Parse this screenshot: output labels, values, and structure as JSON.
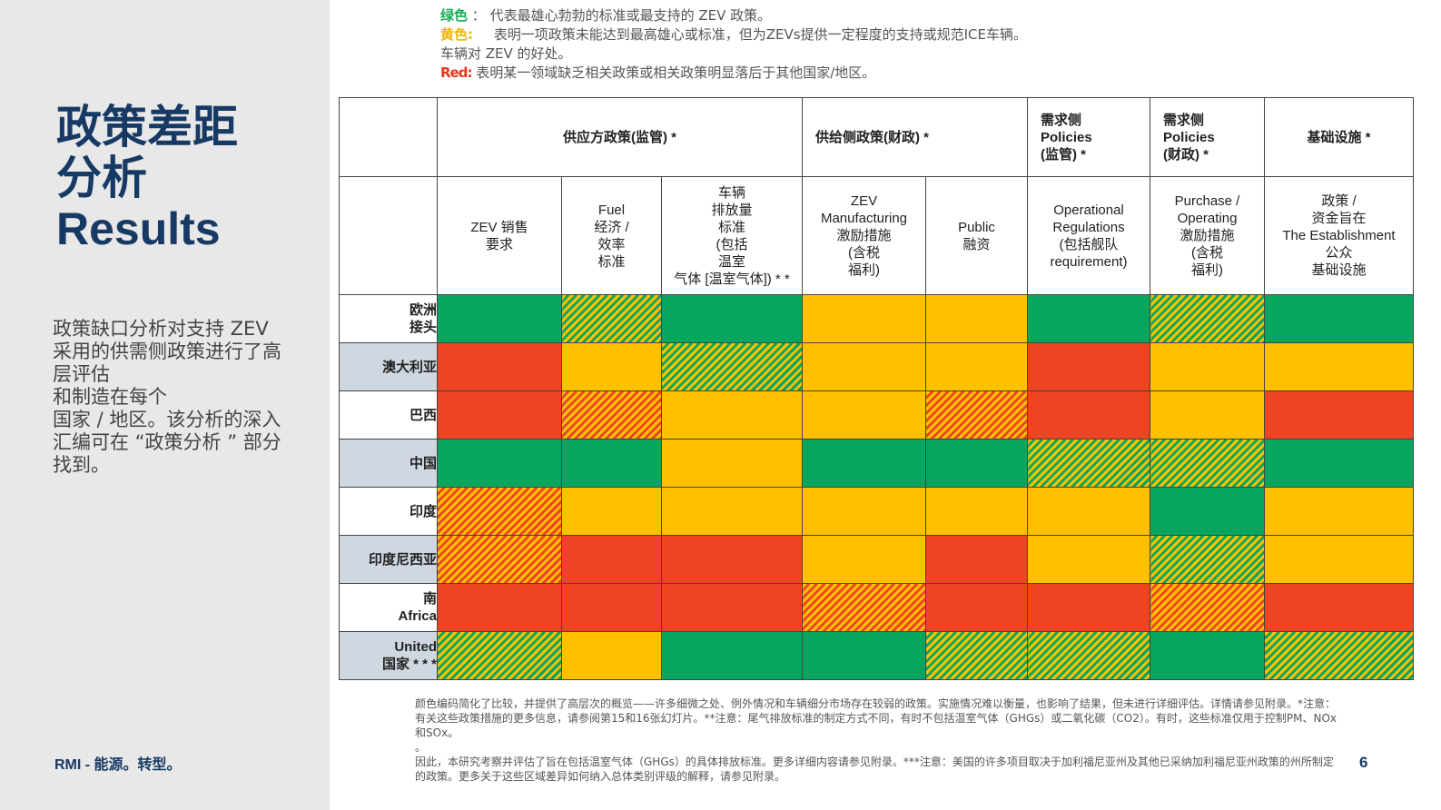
{
  "title": {
    "line1": "政策差距",
    "line2": "分析",
    "line3": "Results"
  },
  "description": {
    "lines": [
      "政策缺口分析对支持 ZEV",
      "采用的供需侧政策进行了高",
      "层评估",
      "和制造在每个",
      "国家 / 地区。该分析的深入",
      "汇编可在 “政策分析 ” 部分",
      "找到。"
    ]
  },
  "brand": "RMI - 能源。转型。",
  "legend": {
    "green_label": "绿色",
    "green_text": "： 代表最雄心勃勃的标准或最支持的 ZEV 政策。",
    "yellow_label": "黄色:",
    "yellow_text": "表明一项政策未能达到最高雄心或标准，但为ZEVs提供一定程度的支持或规范ICE车辆。",
    "yellow_text2": "车辆对 ZEV 的好处。",
    "red_label": "Red:",
    "red_text": "表明某一领域缺乏相关政策或相关政策明显落后于其他国家/地区。"
  },
  "colors": {
    "green": "#08a55f",
    "yellow": "#ffc000",
    "red": "#ef4423",
    "title_blue": "#173a64",
    "row_label_alt": "#cfd8e0"
  },
  "table": {
    "groups": [
      {
        "label": "供应方政策(监管) *"
      },
      {
        "label": "供给侧政策(财政) *"
      },
      {
        "label": "需求侧\n  Policies\n(监管) *"
      },
      {
        "label": "需求侧\n  Policies\n(财政) *"
      },
      {
        "label": "基础设施 *"
      }
    ],
    "columns": [
      {
        "label": "ZEV 销售\n要求"
      },
      {
        "label": "Fuel\n经济 /\n效率\n标准"
      },
      {
        "label": "车辆\n排放量\n标准\n(包括\n温室\n气体 [温室气体]) * *"
      },
      {
        "label": "ZEV\nManufacturing\n激励措施\n(含税\n福利)"
      },
      {
        "label": "Public\n融资"
      },
      {
        "label": "Operational\nRegulations\n(包括舰队\nrequirement)"
      },
      {
        "label": "Purchase /\nOperating\n激励措施\n(含税\n福利)"
      },
      {
        "label": "政策 /\n资金旨在\nThe Establishment\n公众\n基础设施"
      }
    ],
    "rows": [
      {
        "label": "欧洲\n接头",
        "cells": [
          "green",
          "green-yellow",
          "green",
          "yellow",
          "yellow",
          "green",
          "green-yellow",
          "green"
        ]
      },
      {
        "label": "澳大利亚",
        "cells": [
          "red",
          "yellow",
          "green-yellow",
          "yellow",
          "yellow",
          "red",
          "yellow",
          "yellow"
        ]
      },
      {
        "label": "巴西",
        "cells": [
          "red",
          "red-yellow",
          "yellow",
          "yellow",
          "red-yellow",
          "red",
          "yellow",
          "red"
        ]
      },
      {
        "label": "中国",
        "cells": [
          "green",
          "green",
          "yellow",
          "green",
          "green",
          "green-yellow",
          "green-yellow",
          "green"
        ]
      },
      {
        "label": "印度",
        "cells": [
          "red-yellow",
          "yellow",
          "yellow",
          "yellow",
          "yellow",
          "yellow",
          "green",
          "yellow"
        ]
      },
      {
        "label": "印度尼西亚",
        "cells": [
          "red-yellow",
          "red",
          "red",
          "yellow",
          "red",
          "yellow",
          "green-yellow",
          "yellow"
        ]
      },
      {
        "label": "南\nAfrica",
        "cells": [
          "red",
          "red",
          "red",
          "red-yellow",
          "red",
          "red",
          "red-yellow",
          "red"
        ]
      },
      {
        "label": "United\n国家 * * *",
        "cells": [
          "green-yellow",
          "yellow",
          "green",
          "green",
          "green-yellow",
          "green-yellow",
          "green",
          "green-yellow"
        ]
      }
    ]
  },
  "footnote": {
    "p1": "颜色编码简化了比较，并提供了高层次的概览——许多细微之处、例外情况和车辆细分市场存在较弱的政策。实施情况难以衡量，也影响了结果，但未进行详细评估。详情请参见附录。*注意：有关这些政策措施的更多信息，请参阅第15和16张幻灯片。**注意：尾气排放标准的制定方式不同，有时不包括温室气体（GHGs）或二氧化碳（CO2）。有时，这些标准仅用于控制PM、NOx和SOx。",
    "p2": "。",
    "p3": "因此，本研究考察并评估了旨在包括温室气体（GHGs）的具体排放标准。更多详细内容请参见附录。***注意：美国的许多项目取决于加利福尼亚州及其他已采纳加利福尼亚州政策的州所制定的政策。更多关于这些区域差异如何纳入总体类别评级的解释，请参见附录。"
  },
  "page_number": "6"
}
